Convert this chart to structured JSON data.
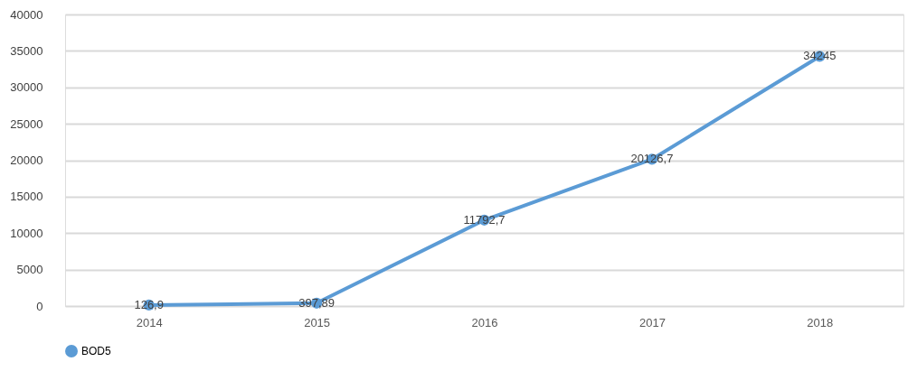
{
  "chart_data": {
    "type": "line",
    "categories": [
      "2014",
      "2015",
      "2016",
      "2017",
      "2018"
    ],
    "series": [
      {
        "name": "BOD5",
        "color": "#5b9bd5",
        "values": [
          126.9,
          397.89,
          11792.7,
          20126.7,
          34245
        ],
        "value_labels": [
          "126,9",
          "397,89",
          "11792,7",
          "20126,7",
          "34245"
        ]
      }
    ],
    "ylim": [
      0,
      40000
    ],
    "yticks": [
      0,
      5000,
      10000,
      15000,
      20000,
      25000,
      30000,
      35000,
      40000
    ],
    "grid": "y",
    "legend": "bottom",
    "marker": "circle",
    "line_style": "solid"
  }
}
